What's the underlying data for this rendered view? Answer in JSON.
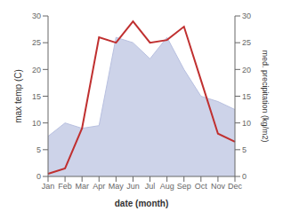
{
  "chart_data": {
    "type": "line",
    "categories": [
      "Jan",
      "Feb",
      "Mar",
      "Apr",
      "May",
      "Jun",
      "Jul",
      "Aug",
      "Sep",
      "Oct",
      "Nov",
      "Dec"
    ],
    "series": [
      {
        "type": "area",
        "color": "#b8c0e0",
        "axis": "y2",
        "values": [
          7.5,
          10.0,
          9.0,
          9.5,
          26.0,
          25.0,
          22.0,
          26.0,
          20.0,
          15.0,
          14.0,
          12.5
        ]
      },
      {
        "type": "line",
        "color": "#c03030",
        "values": [
          0.5,
          1.5,
          9.0,
          26.0,
          25.0,
          29.0,
          25.0,
          25.5,
          28.0,
          18.0,
          8.0,
          6.5
        ]
      }
    ],
    "xlabel": "date (month)",
    "ylabel": "max temp (C)",
    "y2label": "med. precipitation (kg/m2)",
    "ylim": [
      0,
      30
    ],
    "yticks": [
      0,
      5,
      10,
      15,
      20,
      25,
      30
    ],
    "y2lim": [
      0,
      30
    ],
    "y2ticks": [
      0,
      5,
      10,
      15,
      20,
      25,
      30
    ],
    "grid": false
  }
}
